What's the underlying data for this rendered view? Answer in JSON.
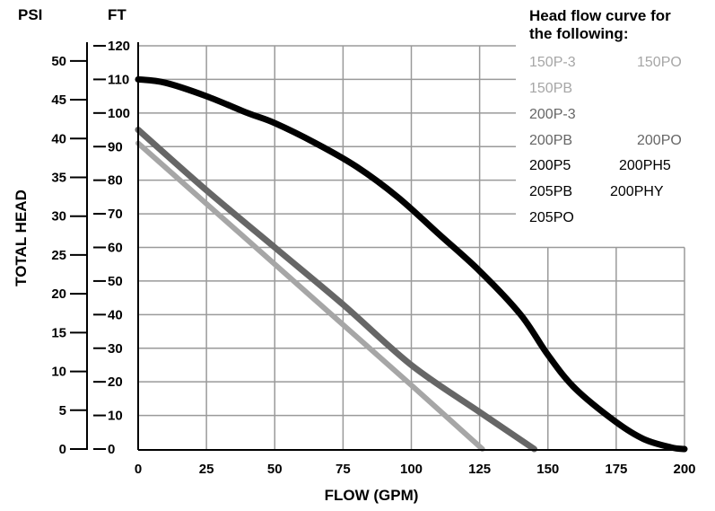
{
  "chart_data": {
    "type": "line",
    "xlabel": "FLOW (GPM)",
    "ylabel": "TOTAL HEAD",
    "y_units_left": "PSI",
    "y_units_right": "FT",
    "xlim": [
      0,
      200
    ],
    "ylim_ft": [
      0,
      120
    ],
    "ylim_psi": [
      0,
      52
    ],
    "x_ticks": [
      "0",
      "25",
      "50",
      "75",
      "100",
      "125",
      "150",
      "175",
      "200"
    ],
    "ft_ticks": [
      "0",
      "10",
      "20",
      "30",
      "40",
      "50",
      "60",
      "70",
      "80",
      "90",
      "100",
      "110",
      "120"
    ],
    "psi_ticks": [
      "0",
      "5",
      "10",
      "15",
      "20",
      "25",
      "30",
      "35",
      "40",
      "45",
      "50"
    ],
    "grid": true,
    "legend": {
      "title_line1": "Head flow curve for",
      "title_line2": "the following:",
      "placement": "top-right",
      "groups": [
        {
          "color": "#a6a6a6",
          "items": [
            "150P-3",
            "150PO",
            "150PB"
          ]
        },
        {
          "color": "#666666",
          "items": [
            "200P-3",
            "200PB",
            "200PO"
          ]
        },
        {
          "color": "#000000",
          "items": [
            "200P5",
            "200PH5",
            "205PB",
            "200PHY",
            "205PO"
          ]
        }
      ]
    },
    "series": [
      {
        "color": "#000000",
        "x": [
          0,
          10,
          25,
          40,
          50,
          65,
          80,
          95,
          110,
          125,
          140,
          150,
          160,
          175,
          185,
          195,
          200
        ],
        "y": [
          110,
          109,
          105,
          100,
          97,
          91,
          84,
          75,
          64,
          53,
          40,
          28,
          18,
          8,
          3,
          0.5,
          0
        ]
      },
      {
        "color": "#666666",
        "x": [
          0,
          25,
          50,
          75,
          100,
          125,
          145
        ],
        "y": [
          95,
          77,
          60,
          43,
          25,
          11,
          0
        ]
      },
      {
        "color": "#a6a6a6",
        "x": [
          0,
          25,
          50,
          75,
          100,
          126
        ],
        "y": [
          91,
          73,
          55,
          37,
          19,
          0
        ]
      }
    ]
  }
}
